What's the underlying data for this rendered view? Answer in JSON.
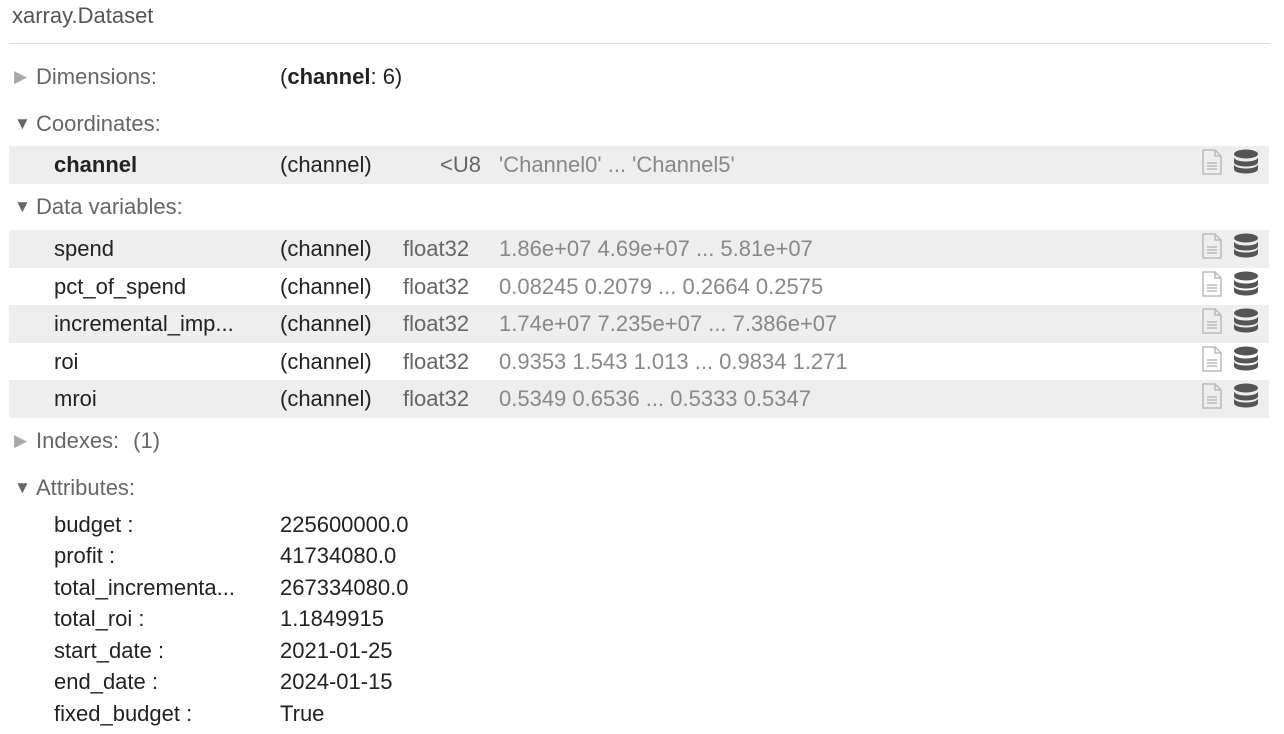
{
  "title": "xarray.Dataset",
  "sections": {
    "dimensions": {
      "label": "Dimensions:",
      "dim_name": "channel",
      "dim_size": ": 6)",
      "open_paren": "(",
      "expanded": false
    },
    "coordinates": {
      "label": "Coordinates:",
      "expanded": true
    },
    "data_variables": {
      "label": "Data variables:",
      "expanded": true
    },
    "indexes": {
      "label": "Indexes:",
      "count": "(1)",
      "expanded": false
    },
    "attributes": {
      "label": "Attributes:",
      "expanded": true
    }
  },
  "coordinates": [
    {
      "name": "channel",
      "dims": "(channel)",
      "dtype": "<U8",
      "preview": "'Channel0' ... 'Channel5'"
    }
  ],
  "data_vars": [
    {
      "name": "spend",
      "dims": "(channel)",
      "dtype": "float32",
      "preview": "1.86e+07 4.69e+07 ... 5.81e+07"
    },
    {
      "name": "pct_of_spend",
      "dims": "(channel)",
      "dtype": "float32",
      "preview": "0.08245 0.2079 ... 0.2664 0.2575"
    },
    {
      "name": "incremental_imp...",
      "dims": "(channel)",
      "dtype": "float32",
      "preview": "1.74e+07 7.235e+07 ... 7.386e+07"
    },
    {
      "name": "roi",
      "dims": "(channel)",
      "dtype": "float32",
      "preview": "0.9353 1.543 1.013 ... 0.9834 1.271"
    },
    {
      "name": "mroi",
      "dims": "(channel)",
      "dtype": "float32",
      "preview": "0.5349 0.6536 ... 0.5333 0.5347"
    }
  ],
  "attributes": [
    {
      "key": "budget :",
      "value": "225600000.0"
    },
    {
      "key": "profit :",
      "value": "41734080.0"
    },
    {
      "key": "total_incrementa...",
      "value": "267334080.0"
    },
    {
      "key": "total_roi :",
      "value": "1.1849915"
    },
    {
      "key": "start_date :",
      "value": "2021-01-25"
    },
    {
      "key": "end_date :",
      "value": "2024-01-15"
    },
    {
      "key": "fixed_budget :",
      "value": "True"
    }
  ],
  "icons": {
    "attrs": "file-text-icon",
    "data": "database-icon"
  }
}
